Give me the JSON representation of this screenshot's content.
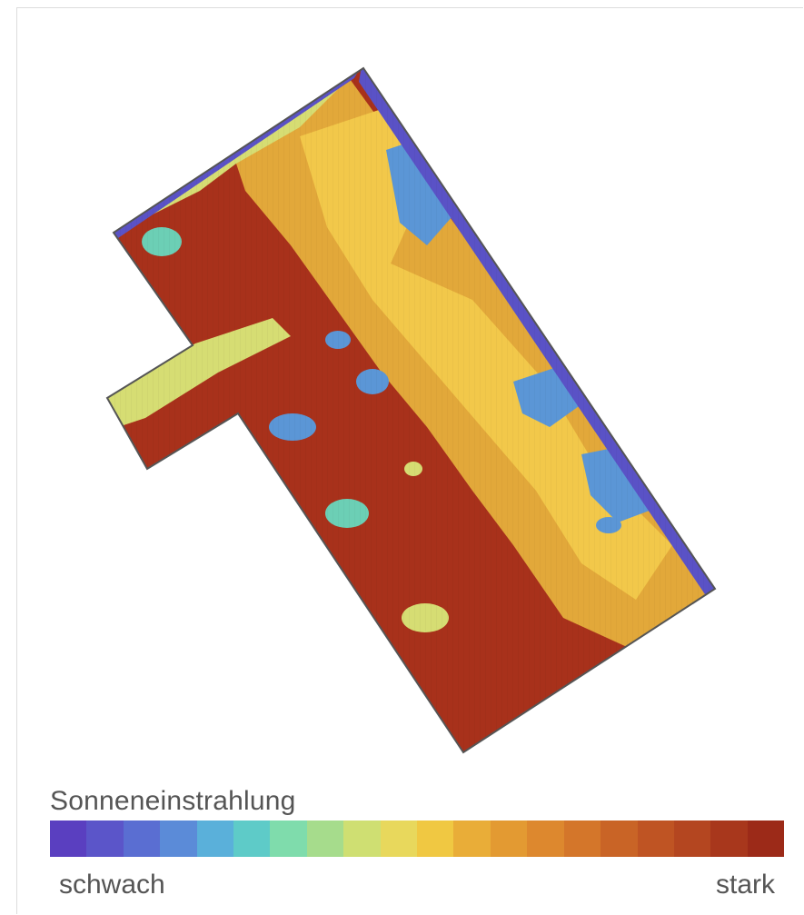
{
  "legend": {
    "title": "Sonneneinstrahlung",
    "min_label": "schwach",
    "max_label": "stark",
    "colors": [
      "#5a3fc0",
      "#5b55c9",
      "#5a6ed2",
      "#5b8bd8",
      "#5ab0da",
      "#5ecbc8",
      "#7fdcac",
      "#a6dc8c",
      "#cfdf72",
      "#e8d85c",
      "#f0c842",
      "#e9ad38",
      "#e39a32",
      "#dd882e",
      "#d4762a",
      "#c96426",
      "#bf5423",
      "#b44620",
      "#a8371c",
      "#9c2a18"
    ]
  },
  "map": {
    "colors": {
      "strong": "#a8311b",
      "high": "#e2a83a",
      "mid_high": "#f2c84a",
      "mid": "#d6dd73",
      "low_mid": "#6ccfb5",
      "low": "#5b96d6",
      "weak": "#5a52c6",
      "outline": "#555555"
    }
  }
}
